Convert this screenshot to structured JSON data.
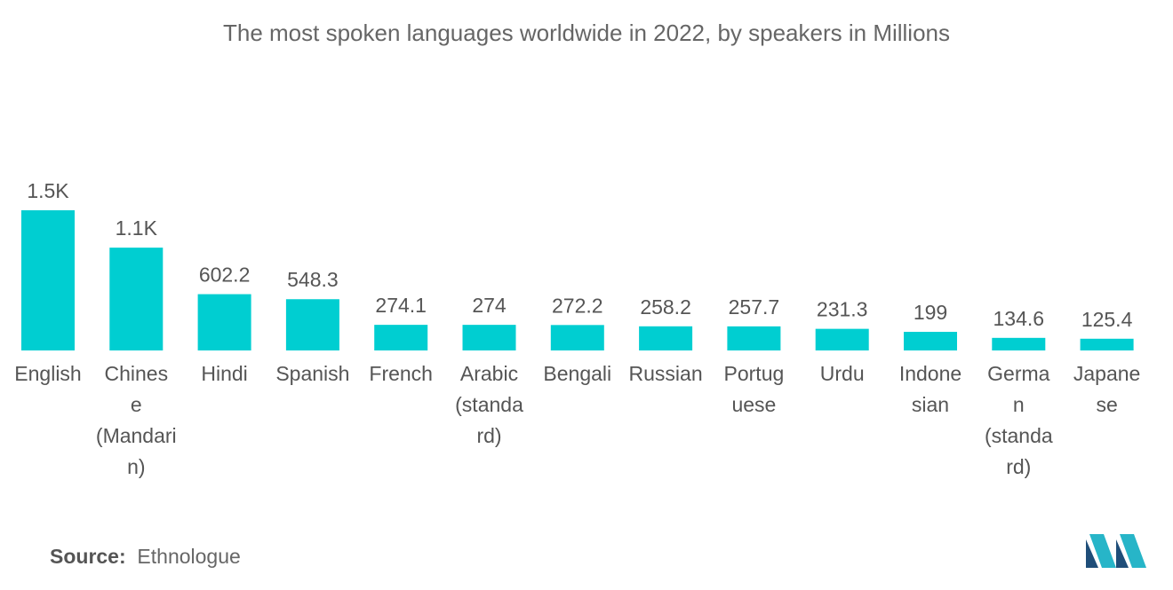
{
  "title": "The most spoken languages worldwide in 2022, by speakers in Millions",
  "source_label": "Source:",
  "source_value": "Ethnologue",
  "colors": {
    "bar": "#00CED1",
    "text": "#555555",
    "logo_dark": "#1F4E79",
    "logo_light": "#27B5C8"
  },
  "chart_data": {
    "type": "bar",
    "title": "The most spoken languages worldwide in 2022, by speakers in Millions",
    "categories": [
      "English",
      "Chinese (Mandarin)",
      "Hindi",
      "Spanish",
      "French",
      "Arabic (standard)",
      "Bengali",
      "Russian",
      "Portuguese",
      "Urdu",
      "Indonesian",
      "German (standard)",
      "Japanese"
    ],
    "category_lines": [
      [
        "English"
      ],
      [
        "Chines",
        "e",
        "(Mandari",
        "n)"
      ],
      [
        "Hindi"
      ],
      [
        "Spanish"
      ],
      [
        "French"
      ],
      [
        "Arabic",
        "(standa",
        "rd)"
      ],
      [
        "Bengali"
      ],
      [
        "Russian"
      ],
      [
        "Portug",
        "uese"
      ],
      [
        "Urdu"
      ],
      [
        "Indone",
        "sian"
      ],
      [
        "Germa",
        "n",
        "(standa",
        "rd)"
      ],
      [
        "Japane",
        "se"
      ]
    ],
    "values": [
      1500,
      1100,
      602.2,
      548.3,
      274.1,
      274,
      272.2,
      258.2,
      257.7,
      231.3,
      199,
      134.6,
      125.4
    ],
    "value_labels": [
      "1.5K",
      "1.1K",
      "602.2",
      "548.3",
      "274.1",
      "274",
      "272.2",
      "258.2",
      "257.7",
      "231.3",
      "199",
      "134.6",
      "125.4"
    ],
    "xlabel": "",
    "ylabel": "",
    "grid": false,
    "legend": "none"
  }
}
